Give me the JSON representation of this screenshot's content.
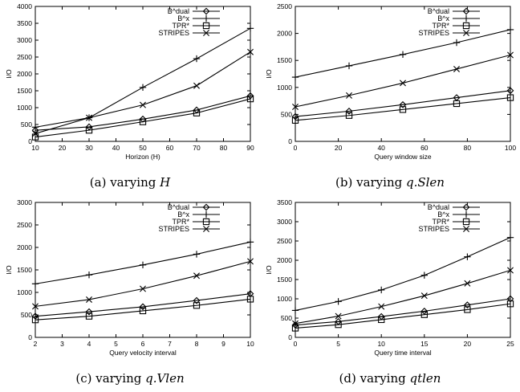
{
  "figure": {
    "captions": [
      {
        "prefix": "(a) varying ",
        "math": "H"
      },
      {
        "prefix": "(b) varying ",
        "math": "q.Slen"
      },
      {
        "prefix": "(c) varying ",
        "math": "q.Vlen"
      },
      {
        "prefix": "(d) varying ",
        "math": "qtlen"
      }
    ]
  },
  "chart_data": [
    {
      "type": "line",
      "xlabel": "Horizon (H)",
      "ylabel": "I/O",
      "xlim": [
        10,
        90
      ],
      "ylim": [
        0,
        4000
      ],
      "xticks": [
        10,
        20,
        30,
        40,
        50,
        60,
        70,
        80,
        90
      ],
      "yticks": [
        0,
        500,
        1000,
        1500,
        2000,
        2500,
        3000,
        3500,
        4000
      ],
      "legend_position": "top-left",
      "x": [
        10,
        30,
        50,
        70,
        90
      ],
      "series": [
        {
          "name": "B^dual",
          "marker": "diamond",
          "values": [
            330,
            430,
            660,
            930,
            1350
          ]
        },
        {
          "name": "B^x",
          "marker": "plus",
          "values": [
            420,
            700,
            1600,
            2450,
            3350
          ]
        },
        {
          "name": "TPR*",
          "marker": "square",
          "values": [
            130,
            330,
            580,
            840,
            1260
          ]
        },
        {
          "name": "STRIPES",
          "marker": "cross",
          "values": [
            230,
            700,
            1080,
            1650,
            2650
          ]
        }
      ]
    },
    {
      "type": "line",
      "xlabel": "Query window size",
      "ylabel": "I/O",
      "xlim": [
        0,
        100
      ],
      "ylim": [
        0,
        2500
      ],
      "xticks": [
        0,
        20,
        40,
        60,
        80,
        100
      ],
      "yticks": [
        0,
        500,
        1000,
        1500,
        2000,
        2500
      ],
      "legend_position": "top-right",
      "x": [
        0,
        25,
        50,
        75,
        100
      ],
      "series": [
        {
          "name": "B^dual",
          "marker": "diamond",
          "values": [
            460,
            560,
            680,
            810,
            940
          ]
        },
        {
          "name": "B^x",
          "marker": "plus",
          "values": [
            1190,
            1400,
            1610,
            1830,
            2070
          ]
        },
        {
          "name": "TPR*",
          "marker": "square",
          "values": [
            390,
            480,
            590,
            700,
            810
          ]
        },
        {
          "name": "STRIPES",
          "marker": "cross",
          "values": [
            640,
            850,
            1080,
            1340,
            1600
          ]
        }
      ]
    },
    {
      "type": "line",
      "xlabel": "Query velocity interval",
      "ylabel": "I/O",
      "xlim": [
        2,
        10
      ],
      "ylim": [
        0,
        3000
      ],
      "xticks": [
        2,
        3,
        4,
        5,
        6,
        7,
        8,
        9,
        10
      ],
      "yticks": [
        0,
        500,
        1000,
        1500,
        2000,
        2500,
        3000
      ],
      "legend_position": "top-right",
      "x": [
        2,
        4,
        6,
        8,
        10
      ],
      "series": [
        {
          "name": "B^dual",
          "marker": "diamond",
          "values": [
            470,
            570,
            680,
            820,
            970
          ]
        },
        {
          "name": "B^x",
          "marker": "plus",
          "values": [
            1190,
            1390,
            1610,
            1850,
            2120
          ]
        },
        {
          "name": "TPR*",
          "marker": "square",
          "values": [
            390,
            470,
            590,
            710,
            850
          ]
        },
        {
          "name": "STRIPES",
          "marker": "cross",
          "values": [
            690,
            840,
            1080,
            1370,
            1690
          ]
        }
      ]
    },
    {
      "type": "line",
      "xlabel": "Query time interval",
      "ylabel": "I/O",
      "xlim": [
        0,
        25
      ],
      "ylim": [
        0,
        3500
      ],
      "xticks": [
        0,
        5,
        10,
        15,
        20,
        25
      ],
      "yticks": [
        0,
        500,
        1000,
        1500,
        2000,
        2500,
        3000,
        3500
      ],
      "legend_position": "top-right",
      "x": [
        0,
        5,
        10,
        15,
        20,
        25
      ],
      "series": [
        {
          "name": "B^dual",
          "marker": "diamond",
          "values": [
            320,
            410,
            540,
            680,
            840,
            1000
          ]
        },
        {
          "name": "B^x",
          "marker": "plus",
          "values": [
            700,
            930,
            1230,
            1610,
            2090,
            2590
          ]
        },
        {
          "name": "TPR*",
          "marker": "square",
          "values": [
            240,
            330,
            460,
            590,
            720,
            870
          ]
        },
        {
          "name": "STRIPES",
          "marker": "cross",
          "values": [
            360,
            550,
            800,
            1080,
            1400,
            1740
          ]
        }
      ]
    }
  ]
}
